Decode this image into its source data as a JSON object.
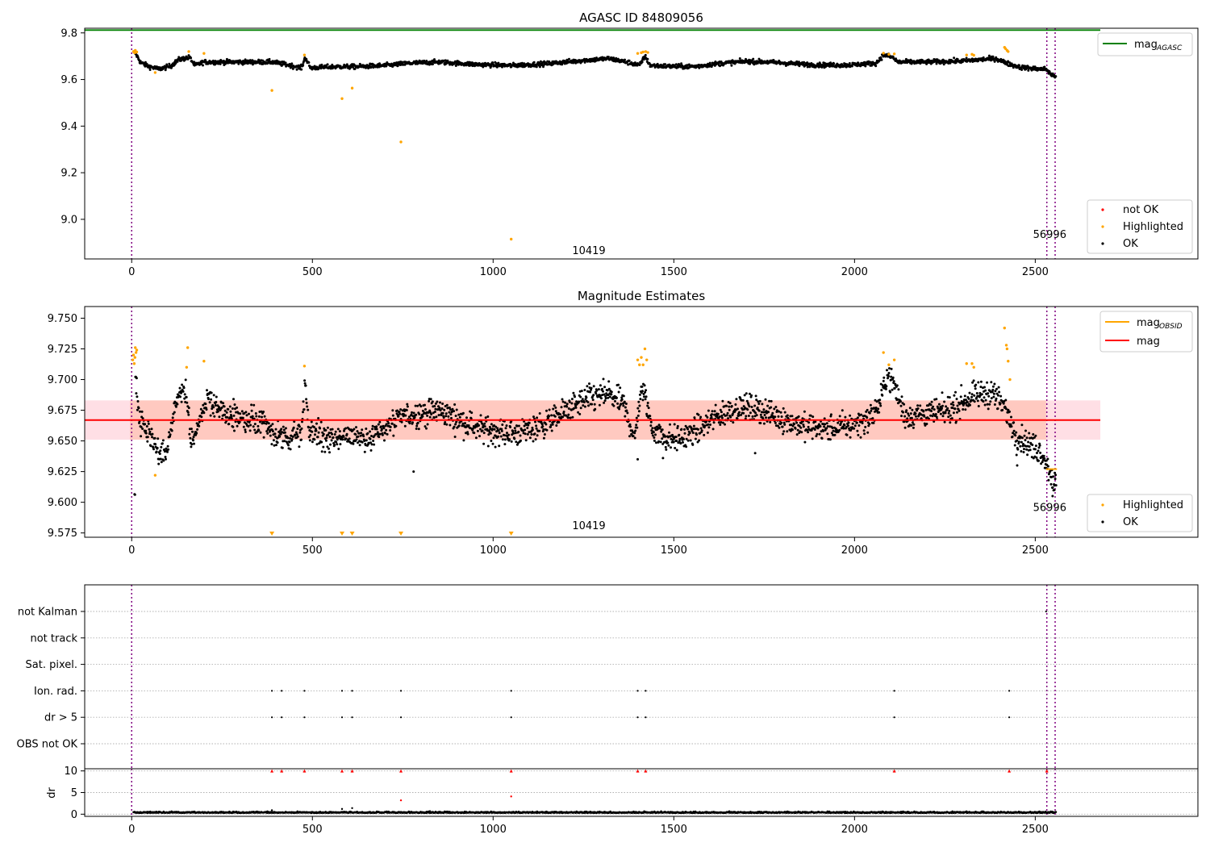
{
  "chart_data": [
    {
      "type": "scatter",
      "title": "AGASC ID 84809056",
      "xlim": [
        -130,
        2950
      ],
      "ylim": [
        8.83,
        9.82
      ],
      "xticks": [
        0,
        500,
        1000,
        1500,
        2000,
        2500
      ],
      "yticks": [
        9.0,
        9.2,
        9.4,
        9.6,
        9.8
      ],
      "ytick_labels": [
        "9.0",
        "9.2",
        "9.4",
        "9.6",
        "9.8"
      ],
      "mag_agasc": 9.812,
      "mag_agasc_xrange": [
        -130,
        2680
      ],
      "vlines": [
        0,
        2532,
        2555
      ],
      "annotations": [
        {
          "text": "10419",
          "x": 1265,
          "y": 8.85
        },
        {
          "text": "56996",
          "x": 2540,
          "y": 8.92
        }
      ],
      "legend_line": {
        "label": "mag",
        "sub": "AGASC",
        "color": "#008000"
      },
      "legend_points": [
        {
          "label": "not OK",
          "color": "#ff0000"
        },
        {
          "label": "Highlighted",
          "color": "#ffa500"
        },
        {
          "label": "OK",
          "color": "#000000"
        }
      ],
      "ok_trend": [
        [
          0,
          9.715
        ],
        [
          10,
          9.715
        ],
        [
          25,
          9.672
        ],
        [
          50,
          9.655
        ],
        [
          75,
          9.645
        ],
        [
          95,
          9.652
        ],
        [
          110,
          9.66
        ],
        [
          130,
          9.685
        ],
        [
          160,
          9.695
        ],
        [
          175,
          9.66
        ],
        [
          200,
          9.675
        ],
        [
          260,
          9.675
        ],
        [
          330,
          9.675
        ],
        [
          390,
          9.675
        ],
        [
          440,
          9.66
        ],
        [
          470,
          9.65
        ],
        [
          480,
          9.695
        ],
        [
          495,
          9.65
        ],
        [
          560,
          9.655
        ],
        [
          620,
          9.655
        ],
        [
          700,
          9.66
        ],
        [
          770,
          9.67
        ],
        [
          850,
          9.675
        ],
        [
          950,
          9.665
        ],
        [
          1050,
          9.66
        ],
        [
          1150,
          9.668
        ],
        [
          1250,
          9.682
        ],
        [
          1320,
          9.69
        ],
        [
          1370,
          9.675
        ],
        [
          1395,
          9.665
        ],
        [
          1405,
          9.66
        ],
        [
          1420,
          9.7
        ],
        [
          1435,
          9.66
        ],
        [
          1500,
          9.656
        ],
        [
          1560,
          9.656
        ],
        [
          1620,
          9.668
        ],
        [
          1700,
          9.678
        ],
        [
          1760,
          9.675
        ],
        [
          1830,
          9.668
        ],
        [
          1900,
          9.662
        ],
        [
          1980,
          9.662
        ],
        [
          2060,
          9.67
        ],
        [
          2080,
          9.705
        ],
        [
          2095,
          9.7
        ],
        [
          2105,
          9.695
        ],
        [
          2120,
          9.675
        ],
        [
          2200,
          9.675
        ],
        [
          2300,
          9.68
        ],
        [
          2390,
          9.69
        ],
        [
          2430,
          9.665
        ],
        [
          2460,
          9.652
        ],
        [
          2510,
          9.645
        ],
        [
          2530,
          9.645
        ],
        [
          2545,
          9.62
        ],
        [
          2555,
          9.615
        ]
      ],
      "highlighted": [
        [
          5,
          9.72
        ],
        [
          8,
          9.715
        ],
        [
          10,
          9.725
        ],
        [
          12,
          9.717
        ],
        [
          14,
          9.718
        ],
        [
          65,
          9.63
        ],
        [
          158,
          9.72
        ],
        [
          200,
          9.712
        ],
        [
          388,
          9.553
        ],
        [
          478,
          9.705
        ],
        [
          582,
          9.518
        ],
        [
          610,
          9.563
        ],
        [
          745,
          9.332
        ],
        [
          1050,
          8.915
        ],
        [
          1400,
          9.712
        ],
        [
          1410,
          9.715
        ],
        [
          1415,
          9.718
        ],
        [
          1422,
          9.72
        ],
        [
          1428,
          9.716
        ],
        [
          2080,
          9.713
        ],
        [
          2095,
          9.708
        ],
        [
          2110,
          9.71
        ],
        [
          2310,
          9.705
        ],
        [
          2325,
          9.708
        ],
        [
          2330,
          9.704
        ],
        [
          2415,
          9.738
        ],
        [
          2418,
          9.732
        ],
        [
          2422,
          9.725
        ],
        [
          2425,
          9.72
        ]
      ],
      "not_ok": []
    },
    {
      "type": "scatter",
      "title": "Magnitude Estimates",
      "xlim": [
        -130,
        2950
      ],
      "ylim": [
        9.5715,
        9.7595
      ],
      "xticks": [
        0,
        500,
        1000,
        1500,
        2000,
        2500
      ],
      "yticks": [
        9.575,
        9.6,
        9.625,
        9.65,
        9.675,
        9.7,
        9.725,
        9.75
      ],
      "ytick_labels": [
        "9.575",
        "9.600",
        "9.625",
        "9.650",
        "9.675",
        "9.700",
        "9.725",
        "9.750"
      ],
      "mag": 9.667,
      "mag_band": [
        9.651,
        9.683
      ],
      "band_xrange": [
        -130,
        2680
      ],
      "vlines": [
        0,
        2532,
        2555
      ],
      "annotations": [
        {
          "text": "10419",
          "x": 1265,
          "y": 9.578
        },
        {
          "text": "56996",
          "x": 2540,
          "y": 9.593
        }
      ],
      "legend_lines": [
        {
          "label": "mag",
          "sub": "OBSID",
          "color": "#ffa500"
        },
        {
          "label": "mag",
          "sub": "",
          "color": "#ff0000"
        }
      ],
      "legend_points": [
        {
          "label": "Highlighted",
          "color": "#ffa500"
        },
        {
          "label": "OK",
          "color": "#000000"
        }
      ],
      "obsid_segments": [
        {
          "x0": 2530,
          "x1": 2560,
          "y": 9.627
        }
      ],
      "ok_trend": [
        [
          10,
          9.705
        ],
        [
          20,
          9.67
        ],
        [
          40,
          9.658
        ],
        [
          60,
          9.648
        ],
        [
          75,
          9.638
        ],
        [
          95,
          9.642
        ],
        [
          110,
          9.658
        ],
        [
          130,
          9.69
        ],
        [
          150,
          9.685
        ],
        [
          165,
          9.65
        ],
        [
          180,
          9.66
        ],
        [
          210,
          9.685
        ],
        [
          240,
          9.675
        ],
        [
          300,
          9.668
        ],
        [
          350,
          9.665
        ],
        [
          400,
          9.655
        ],
        [
          440,
          9.65
        ],
        [
          470,
          9.66
        ],
        [
          480,
          9.698
        ],
        [
          490,
          9.658
        ],
        [
          520,
          9.655
        ],
        [
          560,
          9.65
        ],
        [
          610,
          9.655
        ],
        [
          650,
          9.652
        ],
        [
          700,
          9.66
        ],
        [
          750,
          9.67
        ],
        [
          800,
          9.672
        ],
        [
          850,
          9.675
        ],
        [
          900,
          9.668
        ],
        [
          960,
          9.66
        ],
        [
          1010,
          9.658
        ],
        [
          1060,
          9.656
        ],
        [
          1110,
          9.66
        ],
        [
          1170,
          9.668
        ],
        [
          1220,
          9.678
        ],
        [
          1270,
          9.685
        ],
        [
          1320,
          9.688
        ],
        [
          1360,
          9.68
        ],
        [
          1380,
          9.662
        ],
        [
          1395,
          9.655
        ],
        [
          1410,
          9.695
        ],
        [
          1425,
          9.68
        ],
        [
          1440,
          9.66
        ],
        [
          1480,
          9.652
        ],
        [
          1520,
          9.652
        ],
        [
          1570,
          9.66
        ],
        [
          1620,
          9.67
        ],
        [
          1680,
          9.678
        ],
        [
          1740,
          9.675
        ],
        [
          1800,
          9.668
        ],
        [
          1860,
          9.662
        ],
        [
          1920,
          9.66
        ],
        [
          1980,
          9.662
        ],
        [
          2040,
          9.668
        ],
        [
          2070,
          9.68
        ],
        [
          2090,
          9.705
        ],
        [
          2110,
          9.695
        ],
        [
          2140,
          9.67
        ],
        [
          2200,
          9.672
        ],
        [
          2260,
          9.675
        ],
        [
          2320,
          9.685
        ],
        [
          2380,
          9.69
        ],
        [
          2420,
          9.675
        ],
        [
          2445,
          9.655
        ],
        [
          2480,
          9.648
        ],
        [
          2520,
          9.64
        ],
        [
          2540,
          9.625
        ],
        [
          2555,
          9.615
        ]
      ],
      "extra_ok": [
        [
          780,
          9.625
        ],
        [
          1400,
          9.635
        ],
        [
          1470,
          9.636
        ],
        [
          1725,
          9.64
        ],
        [
          2450,
          9.63
        ],
        [
          2548,
          9.605
        ],
        [
          2553,
          9.61
        ]
      ],
      "highlighted": [
        [
          3,
          9.716
        ],
        [
          5,
          9.72
        ],
        [
          7,
          9.713
        ],
        [
          9,
          9.718
        ],
        [
          10,
          9.726
        ],
        [
          12,
          9.722
        ],
        [
          14,
          9.724
        ],
        [
          65,
          9.622
        ],
        [
          152,
          9.71
        ],
        [
          155,
          9.726
        ],
        [
          200,
          9.715
        ],
        [
          478,
          9.711
        ],
        [
          1400,
          9.716
        ],
        [
          1405,
          9.712
        ],
        [
          1410,
          9.718
        ],
        [
          1415,
          9.712
        ],
        [
          1420,
          9.725
        ],
        [
          1425,
          9.716
        ],
        [
          2080,
          9.722
        ],
        [
          2095,
          9.712
        ],
        [
          2110,
          9.716
        ],
        [
          2310,
          9.713
        ],
        [
          2325,
          9.713
        ],
        [
          2330,
          9.71
        ],
        [
          2415,
          9.742
        ],
        [
          2420,
          9.728
        ],
        [
          2422,
          9.725
        ],
        [
          2425,
          9.715
        ],
        [
          2430,
          9.7
        ]
      ],
      "clipped_highlighted_x": [
        388,
        582,
        610,
        745,
        1050
      ]
    },
    {
      "type": "scatter",
      "flag_labels": [
        "not Kalman",
        "not track",
        "Sat. pixel.",
        "Ion. rad.",
        "dr > 5",
        "OBS not OK"
      ],
      "flag_points": {
        "not Kalman": [
          2530
        ],
        "not track": [],
        "Sat. pixel.": [],
        "Ion. rad.": [
          388,
          415,
          478,
          582,
          610,
          745,
          1050,
          1400,
          1422,
          2110,
          2428
        ],
        "dr > 5": [
          388,
          415,
          478,
          582,
          610,
          745,
          1050,
          1400,
          1422,
          2110,
          2428
        ],
        "OBS not OK": []
      },
      "xlim": [
        -130,
        2950
      ],
      "xticks": [
        0,
        500,
        1000,
        1500,
        2000,
        2500
      ],
      "vlines": [
        0,
        2532,
        2555
      ],
      "dr": {
        "ylabel": "dr",
        "ylim": [
          -0.5,
          10.5
        ],
        "yticks": [
          0,
          5,
          10
        ],
        "baseline": 0.3,
        "outliers": [
          [
            388,
            0.9
          ],
          [
            582,
            1.2
          ],
          [
            610,
            1.4
          ],
          [
            745,
            3.2
          ],
          [
            1050,
            4.1
          ]
        ],
        "capped_x": [
          388,
          415,
          478,
          582,
          610,
          745,
          1050,
          1400,
          1422,
          2110,
          2428,
          2532
        ]
      }
    }
  ]
}
